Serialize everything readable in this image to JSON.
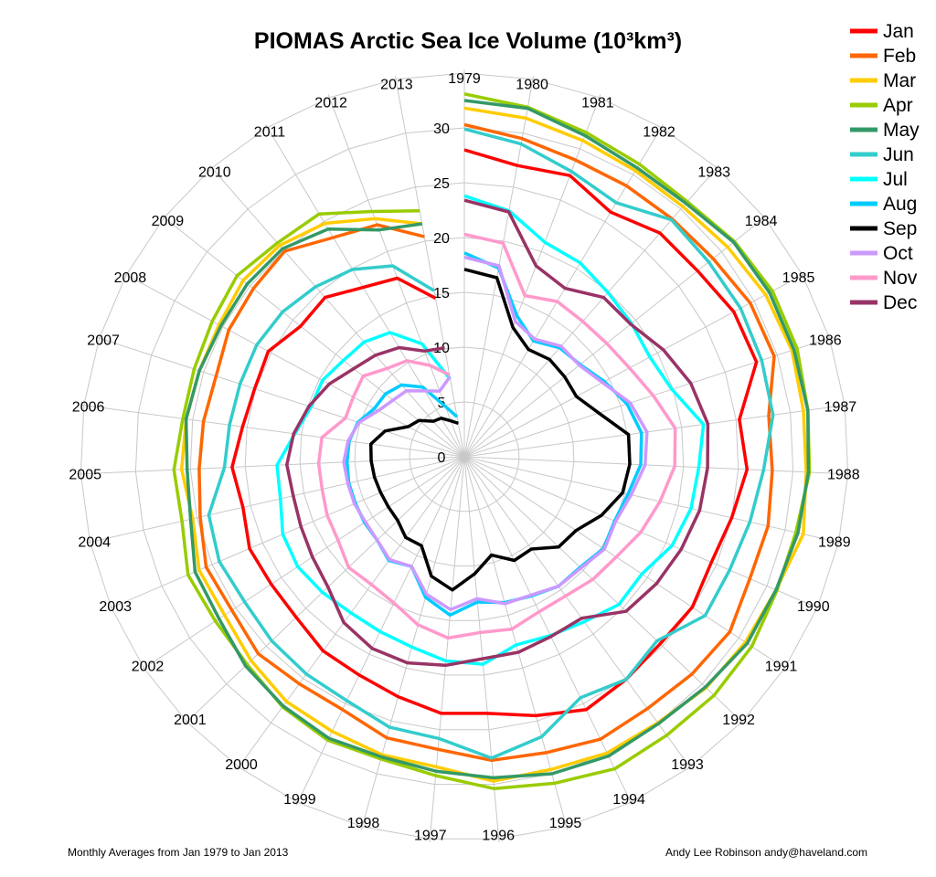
{
  "chart_data": {
    "type": "radar",
    "title": "PIOMAS Arctic Sea Ice Volume (10³km³)",
    "footer_left": "Monthly Averages from Jan 1979 to Jan 2013",
    "footer_right": "Andy Lee Robinson andy@haveland.com",
    "radial_axis": {
      "ticks": [
        0,
        5,
        10,
        15,
        20,
        25,
        30
      ],
      "range": [
        0,
        35
      ],
      "grid": true
    },
    "angular_categories": [
      "1979",
      "1980",
      "1981",
      "1982",
      "1983",
      "1984",
      "1985",
      "1986",
      "1987",
      "1988",
      "1989",
      "1990",
      "1991",
      "1992",
      "1993",
      "1994",
      "1995",
      "1996",
      "1997",
      "1998",
      "1999",
      "2000",
      "2001",
      "2002",
      "2003",
      "2004",
      "2005",
      "2006",
      "2007",
      "2008",
      "2009",
      "2010",
      "2011",
      "2012",
      "2013"
    ],
    "legend_position": "top-right",
    "series": [
      {
        "name": "Jan",
        "color": "#ff0000",
        "values": [
          28.0,
          27.0,
          27.4,
          26.0,
          27.1,
          27.2,
          27.9,
          28.0,
          25.3,
          25.8,
          25.0,
          24.5,
          24.9,
          24.7,
          25.1,
          25.6,
          24.5,
          23.5,
          23.5,
          22.7,
          22.1,
          21.9,
          21.2,
          21.1,
          21.3,
          20.7,
          21.2,
          20.4,
          20.1,
          20.3,
          19.1,
          19.3,
          18.0,
          17.4,
          14.7
        ]
      },
      {
        "name": "Feb",
        "color": "#ff6600",
        "values": [
          30.3,
          29.5,
          28.9,
          28.8,
          28.8,
          29.0,
          29.6,
          29.7,
          28.0,
          28.1,
          28.4,
          28.3,
          29.0,
          28.7,
          28.4,
          28.6,
          28.0,
          27.8,
          26.8,
          26.6,
          25.6,
          25.6,
          26.0,
          25.4,
          25.6,
          24.7,
          24.2,
          24.0,
          23.8,
          24.4,
          24.6,
          24.9,
          23.3,
          22.6,
          20.4
        ]
      },
      {
        "name": "Mar",
        "color": "#ffcc00",
        "values": [
          31.8,
          31.4,
          30.8,
          30.4,
          30.3,
          30.7,
          31.2,
          31.4,
          31.2,
          31.2,
          31.7,
          30.9,
          30.7,
          30.5,
          30.0,
          30.0,
          29.6,
          29.7,
          28.4,
          28.2,
          27.8,
          27.6,
          26.9,
          26.2,
          26.3,
          25.4,
          25.8,
          25.6,
          25.4,
          25.4,
          25.8,
          25.6,
          24.8,
          23.2,
          21.6
        ]
      },
      {
        "name": "Apr",
        "color": "#99cc00",
        "values": [
          33.1,
          32.4,
          31.6,
          31.1,
          30.9,
          31.5,
          31.9,
          31.9,
          31.6,
          31.5,
          31.0,
          31.0,
          31.4,
          31.5,
          31.4,
          31.6,
          30.9,
          30.4,
          29.2,
          28.6,
          28.7,
          28.2,
          27.4,
          27.2,
          27.4,
          26.4,
          26.5,
          25.9,
          25.9,
          26.1,
          26.5,
          25.9,
          25.8,
          23.9,
          22.8
        ]
      },
      {
        "name": "May",
        "color": "#339966",
        "values": [
          32.5,
          32.3,
          31.3,
          30.7,
          30.7,
          31.4,
          31.6,
          31.6,
          31.6,
          31.4,
          31.2,
          30.9,
          30.9,
          30.4,
          30.1,
          30.3,
          30.0,
          29.4,
          28.8,
          28.4,
          28.5,
          28.1,
          27.6,
          26.8,
          26.7,
          25.6,
          25.3,
          25.6,
          25.4,
          25.2,
          25.3,
          25.2,
          24.2,
          22.1,
          21.6
        ]
      },
      {
        "name": "Jun",
        "color": "#33cccc",
        "values": [
          29.9,
          29.0,
          27.8,
          27.0,
          28.7,
          28.5,
          28.6,
          28.5,
          28.4,
          27.3,
          26.7,
          26.3,
          26.3,
          24.3,
          25.1,
          24.4,
          26.5,
          27.6,
          25.8,
          25.6,
          24.7,
          24.5,
          24.3,
          24.0,
          24.3,
          23.9,
          21.9,
          21.6,
          21.5,
          21.5,
          21.2,
          20.6,
          19.9,
          18.6,
          15.4
        ]
      },
      {
        "name": "Jul",
        "color": "#00ffff",
        "values": [
          23.8,
          22.8,
          20.9,
          20.6,
          19.9,
          19.5,
          19.2,
          19.9,
          22.0,
          21.4,
          21.2,
          20.6,
          19.4,
          19.5,
          18.6,
          18.1,
          17.8,
          19.0,
          18.7,
          18.0,
          17.7,
          17.6,
          17.9,
          18.2,
          18.0,
          17.2,
          17.1,
          15.6,
          14.7,
          14.7,
          14.1,
          13.9,
          13.2,
          11.0,
          7.2
        ]
      },
      {
        "name": "Aug",
        "color": "#00ccff",
        "values": [
          18.6,
          17.5,
          13.7,
          12.3,
          13.2,
          13.5,
          14.5,
          15.6,
          16.3,
          16.1,
          15.3,
          14.9,
          15.2,
          14.6,
          14.6,
          14.1,
          13.8,
          13.3,
          14.5,
          13.3,
          11.1,
          11.7,
          11.0,
          10.9,
          10.8,
          10.8,
          10.7,
          10.6,
          10.2,
          9.3,
          9.2,
          8.7,
          7.4,
          4.9,
          3.7
        ]
      },
      {
        "name": "Sep",
        "color": "#000000",
        "values": [
          17.1,
          16.6,
          12.6,
          11.4,
          11.8,
          11.7,
          11.6,
          12.9,
          15.1,
          15.1,
          14.8,
          13.6,
          12.2,
          11.9,
          10.4,
          10.5,
          9.3,
          10.7,
          12.2,
          11.3,
          9.0,
          9.1,
          8.4,
          8.3,
          8.3,
          8.4,
          8.5,
          8.6,
          7.6,
          5.8,
          5.3,
          4.3,
          4.1,
          3.5,
          3.1
        ]
      },
      {
        "name": "Oct",
        "color": "#cc99ff",
        "values": [
          18.2,
          17.7,
          13.2,
          12.5,
          13.4,
          13.4,
          14.3,
          15.9,
          16.8,
          16.5,
          15.6,
          15.0,
          15.3,
          14.7,
          14.6,
          14.0,
          13.9,
          13.0,
          14.0,
          13.0,
          11.1,
          11.6,
          11.0,
          10.8,
          10.9,
          10.9,
          11.0,
          10.7,
          10.1,
          8.9,
          8.3,
          8.0,
          7.0,
          6.4,
          7.4
        ]
      },
      {
        "name": "Nov",
        "color": "#ff99cc",
        "values": [
          20.3,
          19.8,
          15.7,
          16.5,
          16.4,
          16.6,
          17.1,
          18.1,
          19.4,
          19.2,
          18.3,
          17.5,
          16.6,
          16.2,
          15.7,
          15.7,
          16.3,
          16.1,
          16.6,
          15.9,
          14.8,
          14.4,
          14.6,
          13.8,
          13.6,
          13.3,
          13.3,
          13.1,
          11.4,
          11.5,
          11.8,
          10.7,
          10.2,
          8.9,
          7.6
        ]
      },
      {
        "name": "Dec",
        "color": "#993366",
        "values": [
          23.4,
          22.7,
          18.6,
          17.9,
          19.3,
          19.4,
          20.6,
          21.7,
          22.4,
          22.2,
          22.0,
          21.5,
          21.0,
          20.4,
          18.2,
          18.2,
          18.5,
          18.5,
          19.1,
          19.5,
          19.4,
          18.7,
          17.2,
          16.6,
          16.2,
          16.0,
          16.2,
          15.7,
          14.9,
          14.0,
          12.9,
          12.3,
          11.6,
          10.3,
          10.1
        ]
      }
    ]
  }
}
